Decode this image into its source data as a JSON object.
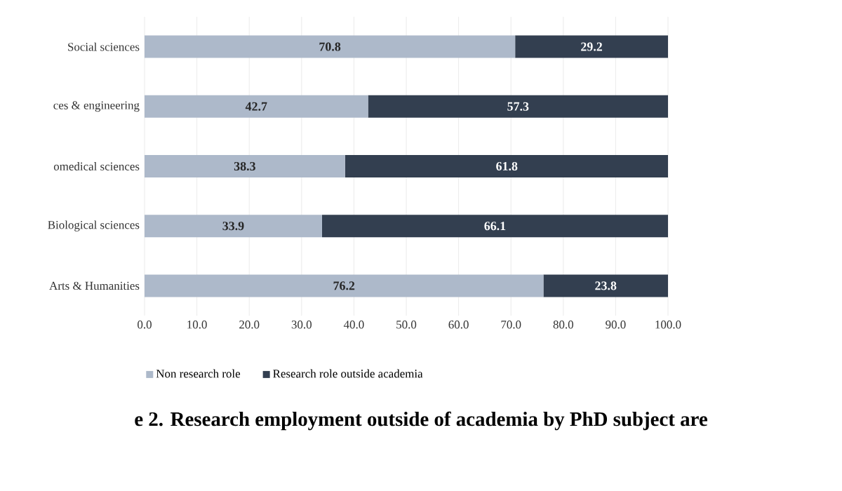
{
  "chart_data": {
    "type": "bar",
    "orientation": "horizontal",
    "stacked": true,
    "categories": [
      "Social sciences",
      "ces & engineering",
      "omedical sciences",
      "Biological sciences",
      "Arts & Humanities"
    ],
    "series": [
      {
        "name": "Non research role",
        "color": "#adb9ca",
        "values": [
          70.8,
          42.7,
          38.3,
          33.9,
          76.2
        ]
      },
      {
        "name": "Research role outside academia",
        "color": "#333f50",
        "values": [
          29.2,
          57.3,
          61.8,
          66.1,
          23.8
        ]
      }
    ],
    "xlim": [
      0,
      100
    ],
    "xticks": [
      {
        "value": 0,
        "label": "0.0"
      },
      {
        "value": 10,
        "label": "10.0"
      },
      {
        "value": 20,
        "label": "20.0"
      },
      {
        "value": 30,
        "label": "30.0"
      },
      {
        "value": 40,
        "label": "40.0"
      },
      {
        "value": 50,
        "label": "50.0"
      },
      {
        "value": 60,
        "label": "60.0"
      },
      {
        "value": 70,
        "label": "70.0"
      },
      {
        "value": 80,
        "label": "80.0"
      },
      {
        "value": 90,
        "label": "90.0"
      },
      {
        "value": 100,
        "label": "100.0"
      }
    ],
    "data_labels": true,
    "grid": "x",
    "legend": "bottom",
    "annotations": [
      "e 2. Research employment outside of academia by PhD subject are"
    ]
  }
}
